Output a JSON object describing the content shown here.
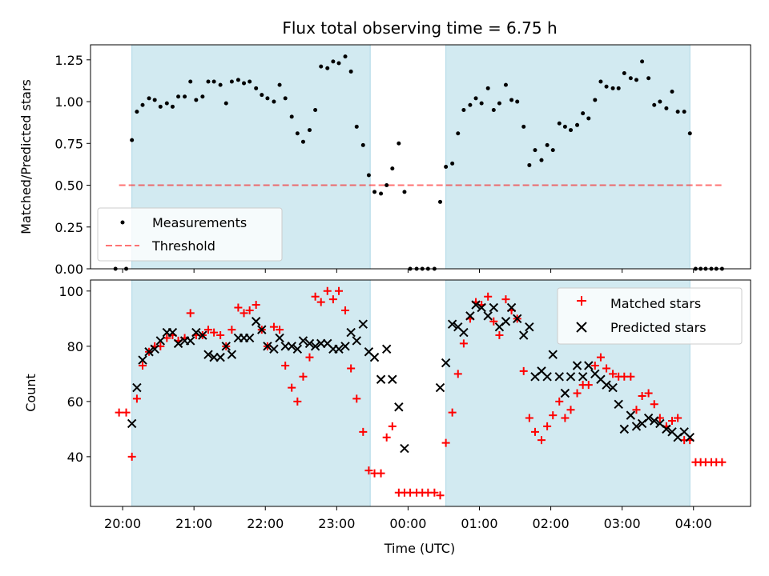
{
  "title": "Flux total observing time = 6.75 h",
  "xlabel": "Time (UTC)",
  "colors": {
    "night_band": "#add8e6",
    "measurements": "#000000",
    "threshold": "#ff0000",
    "matched": "#ff0000",
    "predicted": "#000000"
  },
  "chart_data": [
    {
      "type": "scatter",
      "name": "ratio",
      "ylabel": "Matched/Predicted stars",
      "ylim": [
        0,
        1.34
      ],
      "yticks": [
        0.0,
        0.25,
        0.5,
        0.75,
        1.0,
        1.25
      ],
      "ytick_labels": [
        "0.00",
        "0.25",
        "0.50",
        "0.75",
        "1.00",
        "1.25"
      ],
      "xlim": [
        -0.45,
        8.8
      ],
      "shaded_intervals": [
        [
          0.13,
          3.47
        ],
        [
          4.53,
          7.95
        ]
      ],
      "legend": {
        "position": "lower-left",
        "entries": [
          "Measurements",
          "Threshold"
        ]
      },
      "series": [
        {
          "name": "Measurements",
          "x": [
            -0.1,
            0.05,
            0.13,
            0.2,
            0.28,
            0.37,
            0.45,
            0.53,
            0.62,
            0.7,
            0.78,
            0.87,
            0.95,
            1.03,
            1.12,
            1.2,
            1.28,
            1.37,
            1.45,
            1.53,
            1.62,
            1.7,
            1.78,
            1.87,
            1.95,
            2.03,
            2.12,
            2.2,
            2.28,
            2.37,
            2.45,
            2.53,
            2.62,
            2.7,
            2.78,
            2.87,
            2.95,
            3.03,
            3.12,
            3.2,
            3.28,
            3.37,
            3.45,
            3.53,
            3.62,
            3.7,
            3.78,
            3.87,
            3.95,
            4.03,
            4.12,
            4.2,
            4.28,
            4.37,
            4.45,
            4.53,
            4.62,
            4.7,
            4.78,
            4.87,
            4.95,
            5.03,
            5.12,
            5.2,
            5.28,
            5.37,
            5.45,
            5.53,
            5.62,
            5.7,
            5.78,
            5.87,
            5.95,
            6.03,
            6.12,
            6.2,
            6.28,
            6.37,
            6.45,
            6.53,
            6.62,
            6.7,
            6.78,
            6.87,
            6.95,
            7.03,
            7.12,
            7.2,
            7.28,
            7.37,
            7.45,
            7.53,
            7.62,
            7.7,
            7.78,
            7.87,
            7.95,
            8.03,
            8.1,
            8.17,
            8.25,
            8.32,
            8.4
          ],
          "y": [
            0.0,
            0.0,
            0.77,
            0.94,
            0.98,
            1.02,
            1.01,
            0.97,
            0.99,
            0.97,
            1.03,
            1.03,
            1.12,
            1.01,
            1.03,
            1.12,
            1.12,
            1.1,
            0.99,
            1.12,
            1.13,
            1.11,
            1.12,
            1.08,
            1.04,
            1.02,
            1.0,
            1.1,
            1.02,
            0.91,
            0.81,
            0.76,
            0.83,
            0.95,
            1.21,
            1.2,
            1.24,
            1.23,
            1.27,
            1.18,
            0.85,
            0.74,
            0.56,
            0.46,
            0.45,
            0.5,
            0.6,
            0.75,
            0.46,
            0.0,
            0.0,
            0.0,
            0.0,
            0.0,
            0.4,
            0.61,
            0.63,
            0.81,
            0.95,
            0.98,
            1.02,
            0.99,
            1.08,
            0.95,
            0.99,
            1.1,
            1.01,
            1.0,
            0.85,
            0.62,
            0.71,
            0.65,
            0.74,
            0.71,
            0.87,
            0.85,
            0.83,
            0.86,
            0.93,
            0.9,
            1.01,
            1.12,
            1.09,
            1.08,
            1.08,
            1.17,
            1.14,
            1.13,
            1.24,
            1.14,
            0.98,
            1.0,
            0.96,
            1.06,
            0.94,
            0.94,
            0.81,
            0.0,
            0.0,
            0.0,
            0.0,
            0.0,
            0.0
          ]
        },
        {
          "name": "Threshold",
          "x": [
            -0.05,
            8.4
          ],
          "y": [
            0.5,
            0.5
          ]
        }
      ]
    },
    {
      "type": "scatter",
      "name": "counts",
      "ylabel": "Count",
      "ylim": [
        22,
        104
      ],
      "yticks": [
        40,
        60,
        80,
        100
      ],
      "ytick_labels": [
        "40",
        "60",
        "80",
        "100"
      ],
      "xlim": [
        -0.45,
        8.8
      ],
      "xticks": [
        0,
        1,
        2,
        3,
        4,
        5,
        6,
        7,
        8
      ],
      "xtick_labels": [
        "20:00",
        "21:00",
        "22:00",
        "23:00",
        "00:00",
        "01:00",
        "02:00",
        "03:00",
        "04:00"
      ],
      "shaded_intervals": [
        [
          0.13,
          3.47
        ],
        [
          4.53,
          7.95
        ]
      ],
      "legend": {
        "position": "top-right",
        "entries": [
          "Matched stars",
          "Predicted stars"
        ]
      },
      "series": [
        {
          "name": "Matched stars",
          "x": [
            -0.05,
            0.05,
            0.13,
            0.2,
            0.28,
            0.37,
            0.45,
            0.53,
            0.62,
            0.7,
            0.78,
            0.87,
            0.95,
            1.03,
            1.12,
            1.2,
            1.28,
            1.37,
            1.45,
            1.53,
            1.62,
            1.7,
            1.78,
            1.87,
            1.95,
            2.03,
            2.12,
            2.2,
            2.28,
            2.37,
            2.45,
            2.53,
            2.62,
            2.7,
            2.78,
            2.87,
            2.95,
            3.03,
            3.12,
            3.2,
            3.28,
            3.37,
            3.45,
            3.53,
            3.62,
            3.7,
            3.78,
            3.87,
            3.95,
            4.03,
            4.12,
            4.2,
            4.28,
            4.37,
            4.45,
            4.53,
            4.62,
            4.7,
            4.78,
            4.87,
            4.95,
            5.03,
            5.12,
            5.2,
            5.28,
            5.37,
            5.45,
            5.53,
            5.62,
            5.7,
            5.78,
            5.87,
            5.95,
            6.03,
            6.12,
            6.2,
            6.28,
            6.37,
            6.45,
            6.53,
            6.62,
            6.7,
            6.78,
            6.87,
            6.95,
            7.03,
            7.12,
            7.2,
            7.28,
            7.37,
            7.45,
            7.53,
            7.62,
            7.7,
            7.78,
            7.87,
            7.95,
            8.03,
            8.1,
            8.17,
            8.25,
            8.32,
            8.4
          ],
          "y": [
            56,
            56,
            40,
            61,
            73,
            78,
            80,
            80,
            83,
            84,
            82,
            83,
            92,
            84,
            84,
            86,
            85,
            84,
            80,
            86,
            94,
            92,
            93,
            95,
            86,
            80,
            87,
            86,
            73,
            65,
            60,
            69,
            76,
            98,
            96,
            100,
            97,
            100,
            93,
            72,
            61,
            49,
            35,
            34,
            34,
            47,
            51,
            27,
            27,
            27,
            27,
            27,
            27,
            27,
            26,
            45,
            56,
            70,
            81,
            90,
            96,
            95,
            98,
            89,
            84,
            97,
            93,
            90,
            71,
            54,
            49,
            46,
            51,
            55,
            60,
            54,
            57,
            63,
            66,
            66,
            73,
            76,
            72,
            70,
            69,
            69,
            69,
            57,
            62,
            63,
            59,
            54,
            51,
            53,
            54,
            46,
            46,
            38,
            38,
            38,
            38,
            38,
            38
          ]
        },
        {
          "name": "Predicted stars",
          "x": [
            0.13,
            0.2,
            0.28,
            0.37,
            0.45,
            0.53,
            0.62,
            0.7,
            0.78,
            0.87,
            0.95,
            1.03,
            1.12,
            1.2,
            1.28,
            1.37,
            1.45,
            1.53,
            1.62,
            1.7,
            1.78,
            1.87,
            1.95,
            2.03,
            2.12,
            2.2,
            2.28,
            2.37,
            2.45,
            2.53,
            2.62,
            2.7,
            2.78,
            2.87,
            2.95,
            3.03,
            3.12,
            3.2,
            3.28,
            3.37,
            3.45,
            3.53,
            3.62,
            3.7,
            3.78,
            3.87,
            3.95,
            4.45,
            4.53,
            4.62,
            4.7,
            4.78,
            4.87,
            4.95,
            5.03,
            5.12,
            5.2,
            5.28,
            5.37,
            5.45,
            5.53,
            5.62,
            5.7,
            5.78,
            5.87,
            5.95,
            6.03,
            6.12,
            6.2,
            6.28,
            6.37,
            6.45,
            6.53,
            6.62,
            6.7,
            6.78,
            6.87,
            6.95,
            7.03,
            7.12,
            7.2,
            7.28,
            7.37,
            7.45,
            7.53,
            7.62,
            7.7,
            7.78,
            7.87,
            7.95
          ],
          "y": [
            52,
            65,
            75,
            78,
            79,
            82,
            85,
            85,
            81,
            82,
            82,
            85,
            84,
            77,
            76,
            76,
            80,
            77,
            83,
            83,
            83,
            89,
            86,
            80,
            79,
            83,
            80,
            80,
            79,
            82,
            81,
            80,
            81,
            81,
            79,
            79,
            80,
            85,
            82,
            88,
            78,
            76,
            68,
            79,
            68,
            58,
            43,
            65,
            74,
            88,
            87,
            85,
            91,
            95,
            94,
            91,
            94,
            87,
            89,
            94,
            90,
            84,
            87,
            69,
            71,
            69,
            77,
            69,
            63,
            69,
            73,
            69,
            73,
            70,
            68,
            66,
            65,
            59,
            50,
            55,
            51,
            52,
            54,
            53,
            52,
            50,
            49,
            47,
            49,
            47
          ]
        }
      ]
    }
  ]
}
